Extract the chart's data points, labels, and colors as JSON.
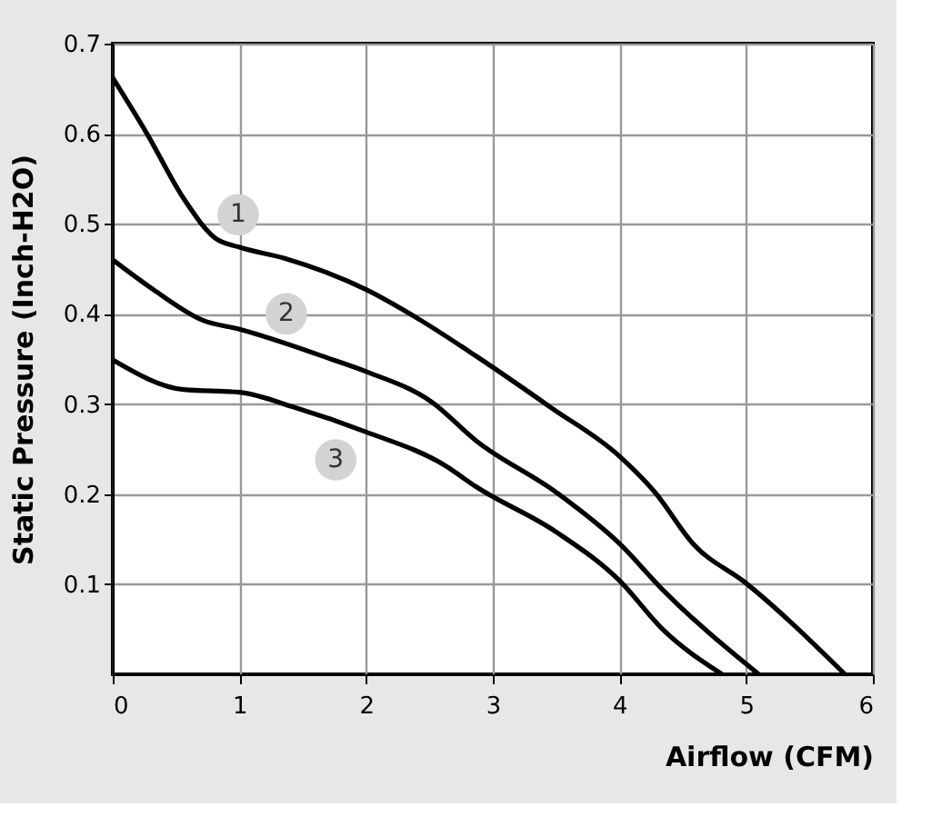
{
  "chart_data": {
    "type": "line",
    "xlabel": "Airflow (CFM)",
    "ylabel": "Static Pressure (Inch-H2O)",
    "xlim": [
      0,
      6
    ],
    "xticks": [
      0,
      1,
      2,
      3,
      4,
      5,
      6
    ],
    "ylim": [
      0,
      0.7
    ],
    "yticks": [
      0.1,
      0.2,
      0.3,
      0.4,
      0.5,
      0.6,
      0.7
    ],
    "grid": true,
    "legend": false,
    "marker": "none",
    "line_style": "solid",
    "series": [
      {
        "color": "#000000",
        "x": [
          0,
          0.27,
          0.56,
          0.81,
          1,
          1.35,
          2,
          2.43,
          2.87,
          3.46,
          4,
          4.28,
          4.58,
          5,
          5.78
        ],
        "values": [
          0.662,
          0.6,
          0.528,
          0.484,
          0.474,
          0.462,
          0.427,
          0.393,
          0.353,
          0.296,
          0.242,
          0.202,
          0.145,
          0.101,
          0
        ]
      },
      {
        "color": "#000000",
        "x": [
          0,
          0.32,
          0.71,
          1,
          1.74,
          2,
          2.52,
          2.87,
          3.5,
          4,
          4.34,
          5.1
        ],
        "values": [
          0.46,
          0.427,
          0.393,
          0.383,
          0.349,
          0.336,
          0.302,
          0.259,
          0.202,
          0.145,
          0.094,
          0
        ]
      },
      {
        "color": "#000000",
        "x": [
          0,
          0.56,
          1,
          1.44,
          2,
          2.62,
          2.87,
          3.5,
          4,
          4.34,
          4.81
        ],
        "values": [
          0.349,
          0.316,
          0.313,
          0.296,
          0.269,
          0.232,
          0.208,
          0.158,
          0.104,
          0.05,
          0
        ]
      }
    ],
    "annotations": [
      {
        "text": "1",
        "x": 0.99,
        "y": 0.51
      },
      {
        "text": "2",
        "x": 1.37,
        "y": 0.4
      },
      {
        "text": "3",
        "x": 1.76,
        "y": 0.238
      }
    ]
  }
}
